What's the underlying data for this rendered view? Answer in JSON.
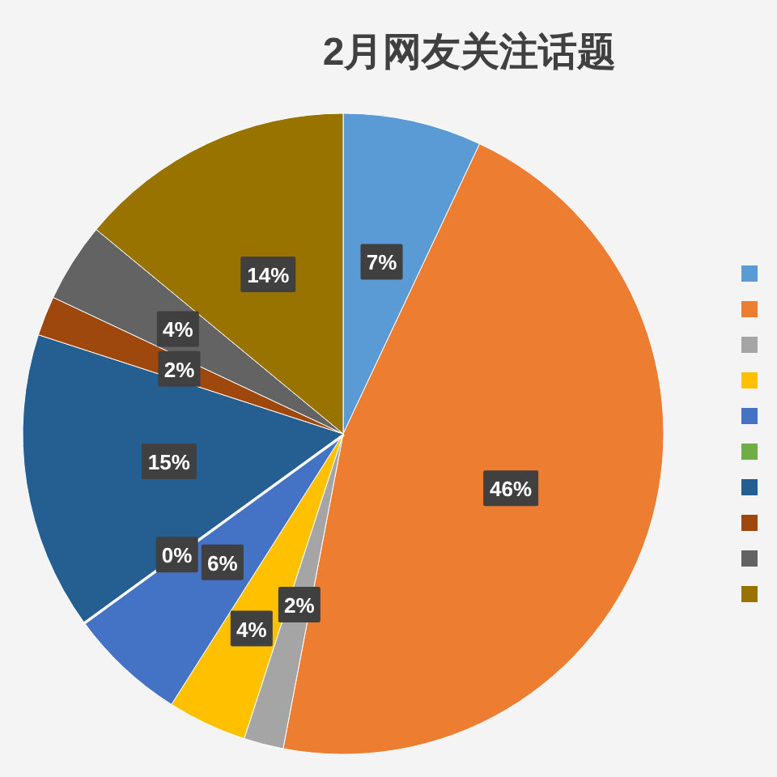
{
  "chart_data": {
    "type": "pie",
    "title": "2月网友关注话题",
    "categories": [
      null,
      null,
      null,
      null,
      null,
      null,
      null,
      null,
      null,
      null
    ],
    "values": [
      7,
      46,
      2,
      4,
      6,
      0,
      15,
      2,
      4,
      14
    ],
    "value_labels": [
      "7%",
      "46%",
      "2%",
      "4%",
      "6%",
      "0%",
      "15%",
      "2%",
      "4%",
      "14%"
    ],
    "colors": [
      "#5b9bd5",
      "#ed7d31",
      "#a5a5a5",
      "#ffc000",
      "#4472c4",
      "#70ad47",
      "#255e91",
      "#9e480e",
      "#636363",
      "#997300"
    ]
  }
}
